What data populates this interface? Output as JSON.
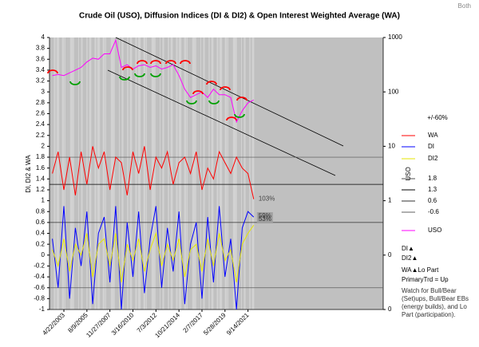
{
  "chart_data": {
    "type": "line",
    "title": "Crude Oil (USO), Diffusion Indices (DI & DI2) & Open Interest Weighted Average (WA)",
    "corner_label": "Both",
    "y_label": "DI, DI2 & WA",
    "y2_label": "USO",
    "band_label": "+/-60%",
    "y2_log": true,
    "grid": false,
    "legend": "right",
    "categories": [
      null,
      null,
      "4/22/2003",
      null,
      null,
      null,
      "8/9/2005",
      null,
      null,
      null,
      "11/27/2007",
      null,
      null,
      null,
      "3/16/2010",
      null,
      null,
      null,
      "7/3/2012",
      null,
      null,
      null,
      "10/21/2014",
      null,
      null,
      null,
      "2/7/2017",
      null,
      null,
      null,
      "5/28/2019",
      null,
      null,
      null,
      "9/14/2021",
      null,
      null,
      null,
      null,
      null,
      null,
      null,
      null,
      null,
      null,
      null,
      null,
      null,
      null,
      null,
      null,
      null,
      null,
      null,
      null,
      null,
      null,
      null
    ],
    "series": [
      {
        "name": "WA",
        "color": "#ff0000",
        "values": [
          1.5,
          1.9,
          1.2,
          1.8,
          1.1,
          1.9,
          1.3,
          2.0,
          1.6,
          1.9,
          1.2,
          1.8,
          1.7,
          1.1,
          1.9,
          1.5,
          2.0,
          1.2,
          1.8,
          1.6,
          1.9,
          1.3,
          1.7,
          1.8,
          1.5,
          1.9,
          1.2,
          1.6,
          1.4,
          1.9,
          1.7,
          1.5,
          1.8,
          1.6,
          1.5,
          1.03,
          null,
          null,
          null,
          null,
          null,
          null,
          null,
          null,
          null,
          null,
          null,
          null,
          null,
          null,
          null,
          null,
          null,
          null,
          null,
          null,
          null,
          null
        ]
      },
      {
        "name": "DI",
        "color": "#0000ff",
        "values": [
          0.3,
          -0.6,
          0.9,
          -0.8,
          0.5,
          -0.2,
          0.8,
          -0.9,
          0.4,
          0.7,
          -0.5,
          0.9,
          -1.0,
          0.6,
          -0.4,
          0.8,
          -0.7,
          0.3,
          0.9,
          -0.6,
          0.5,
          -0.3,
          0.8,
          -0.9,
          0.2,
          0.6,
          -0.8,
          0.7,
          -0.5,
          0.9,
          -0.4,
          0.3,
          -1.0,
          0.5,
          0.8,
          0.7,
          null,
          null,
          null,
          null,
          null,
          null,
          null,
          null,
          null,
          null,
          null,
          null,
          null,
          null,
          null,
          null,
          null,
          null,
          null,
          null,
          null,
          null
        ]
      },
      {
        "name": "DI2",
        "color": "#e6e600",
        "values": [
          0.1,
          -0.2,
          0.3,
          -0.3,
          0.2,
          0.0,
          0.4,
          -0.4,
          0.2,
          0.3,
          -0.2,
          0.4,
          -0.5,
          0.2,
          -0.1,
          0.3,
          -0.3,
          0.1,
          0.4,
          -0.2,
          0.2,
          -0.1,
          0.3,
          -0.4,
          0.1,
          0.2,
          -0.3,
          0.3,
          -0.2,
          0.4,
          -0.1,
          0.1,
          -0.5,
          0.2,
          0.4,
          0.55,
          null,
          null,
          null,
          null,
          null,
          null,
          null,
          null,
          null,
          null,
          null,
          null,
          null,
          null,
          null,
          null,
          null,
          null,
          null,
          null,
          null,
          null
        ]
      },
      {
        "name": "USO",
        "color": "#ff00ff",
        "axis": "y2",
        "values": [
          200,
          209,
          200,
          224,
          251,
          282,
          355,
          417,
          398,
          501,
          501,
          891,
          282,
          316,
          263,
          302,
          316,
          282,
          302,
          263,
          282,
          316,
          200,
          112,
          79,
          89,
          100,
          79,
          112,
          89,
          89,
          79,
          28,
          45,
          63,
          71,
          null,
          null,
          null,
          null,
          null,
          null,
          null,
          null,
          null,
          null,
          null,
          null,
          null,
          null,
          null,
          null,
          null,
          null,
          null,
          null,
          null,
          null
        ]
      }
    ],
    "hlines": [
      {
        "name": "1.8",
        "value": 1.8,
        "color": "#505050"
      },
      {
        "name": "1.3",
        "value": 1.3,
        "color": "#000000"
      },
      {
        "name": "0.6",
        "value": 0.6,
        "color": "#303030"
      },
      {
        "name": "-0.6",
        "value": -0.6,
        "color": "#606060"
      }
    ],
    "ylim": [
      -1,
      4
    ],
    "yticks": [
      4,
      3.8,
      3.6,
      3.4,
      3.2,
      3,
      2.8,
      2.6,
      2.4,
      2.2,
      2,
      1.8,
      1.6,
      1.4,
      1.2,
      1,
      0.8,
      0.6,
      0.4,
      0.2,
      0,
      -0.2,
      -0.4,
      -0.6,
      -0.8,
      -1
    ],
    "y2lim": [
      0.01,
      1000
    ],
    "y2ticks": [
      1000,
      100,
      10,
      1,
      {
        "value": 0.1,
        "label": "0"
      },
      {
        "value": 0.01,
        "label": "0"
      }
    ],
    "annotations": [
      {
        "text": "103%"
      },
      {
        "text": "59%"
      },
      {
        "text": "53%"
      }
    ],
    "notes": [
      "DI▲",
      "DI2▲",
      "WA▲Lo Part",
      "PrimaryTrd = Up",
      "Watch for Bull/Bear (Set)ups, Bull/Bear EBs (energy builds), and Lo Part (participation)."
    ]
  }
}
